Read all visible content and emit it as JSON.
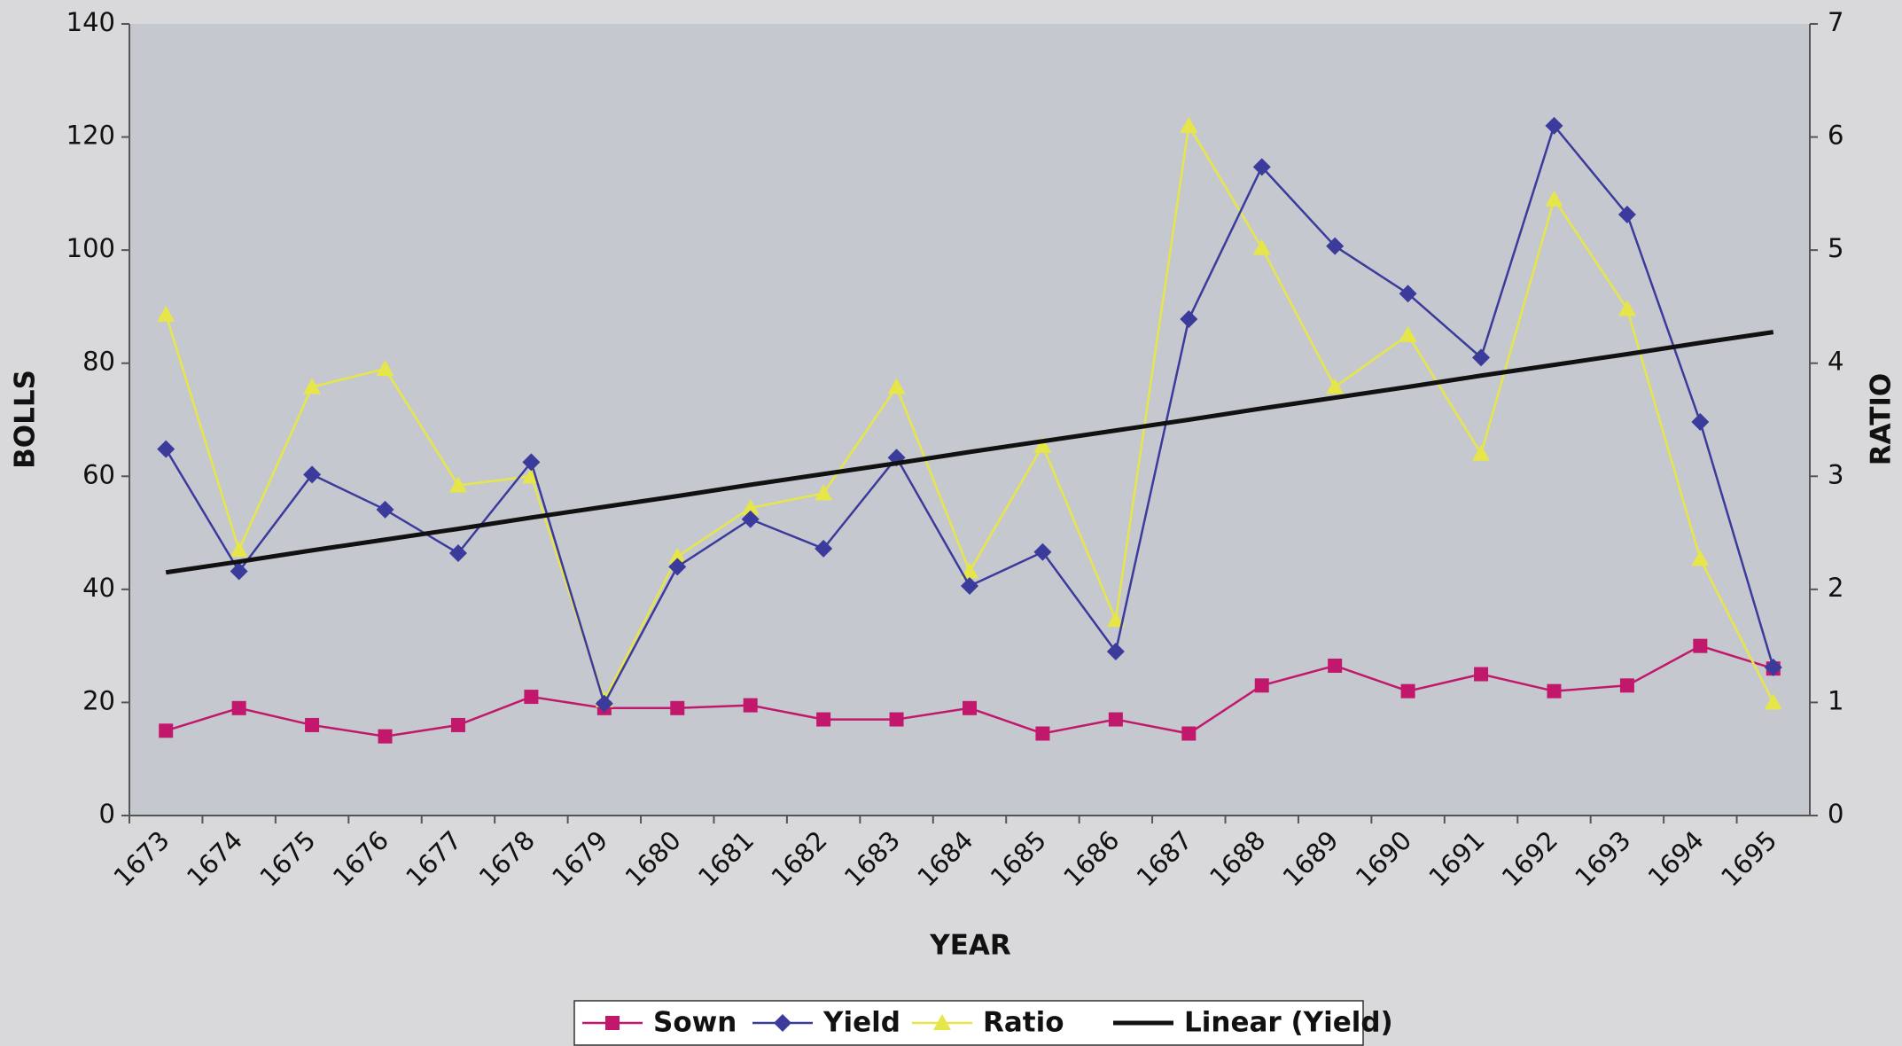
{
  "chart_data": {
    "type": "line",
    "x_label": "YEAR",
    "y_label": "BOLLS",
    "y2_label": "RATIO",
    "categories": [
      "1673",
      "1674",
      "1675",
      "1676",
      "1677",
      "1678",
      "1679",
      "1680",
      "1681",
      "1682",
      "1683",
      "1684",
      "1685",
      "1686",
      "1687",
      "1688",
      "1689",
      "1690",
      "1691",
      "1692",
      "1693",
      "1694",
      "1695"
    ],
    "ylim": [
      0,
      140
    ],
    "yticks": [
      0,
      20,
      40,
      60,
      80,
      100,
      120,
      140
    ],
    "y2lim": [
      0,
      7
    ],
    "y2ticks": [
      0,
      1,
      2,
      3,
      4,
      5,
      6,
      7
    ],
    "legend": "bottom",
    "series": [
      {
        "name": "Sown",
        "color": "#c2186c",
        "marker": "square",
        "values": [
          15,
          19,
          16,
          14,
          16,
          21,
          19,
          19,
          19.5,
          17,
          17,
          19,
          14.5,
          17,
          14.5,
          23,
          26.5,
          22,
          25,
          22,
          23,
          30,
          26
        ]
      },
      {
        "name": "Yield",
        "color": "#3b3b9c",
        "marker": "diamond",
        "values": [
          64.8,
          43.2,
          60.3,
          54.1,
          46.4,
          62.5,
          19.8,
          44,
          52.4,
          47.2,
          63.3,
          40.6,
          46.6,
          29,
          87.8,
          114.7,
          100.7,
          92.3,
          81,
          122,
          106.3,
          69.6,
          26.2
        ]
      },
      {
        "name": "Ratio",
        "color": "#e6e64a",
        "marker": "triangle",
        "axis": "y2",
        "values": [
          4.43,
          2.35,
          3.79,
          3.95,
          2.92,
          3.0,
          1.02,
          2.29,
          2.72,
          2.85,
          3.79,
          2.16,
          3.27,
          1.73,
          6.1,
          5.02,
          3.79,
          4.25,
          3.2,
          5.45,
          4.48,
          2.27,
          1.0
        ]
      },
      {
        "name": "Linear (Yield)",
        "color": "#111111",
        "marker": "none",
        "values": [
          43.0,
          44.9,
          46.9,
          48.8,
          50.7,
          52.7,
          54.6,
          56.5,
          58.5,
          60.4,
          62.3,
          64.3,
          66.2,
          68.1,
          70.0,
          72.0,
          73.9,
          75.8,
          77.8,
          79.7,
          81.6,
          83.6,
          85.5
        ]
      }
    ]
  }
}
